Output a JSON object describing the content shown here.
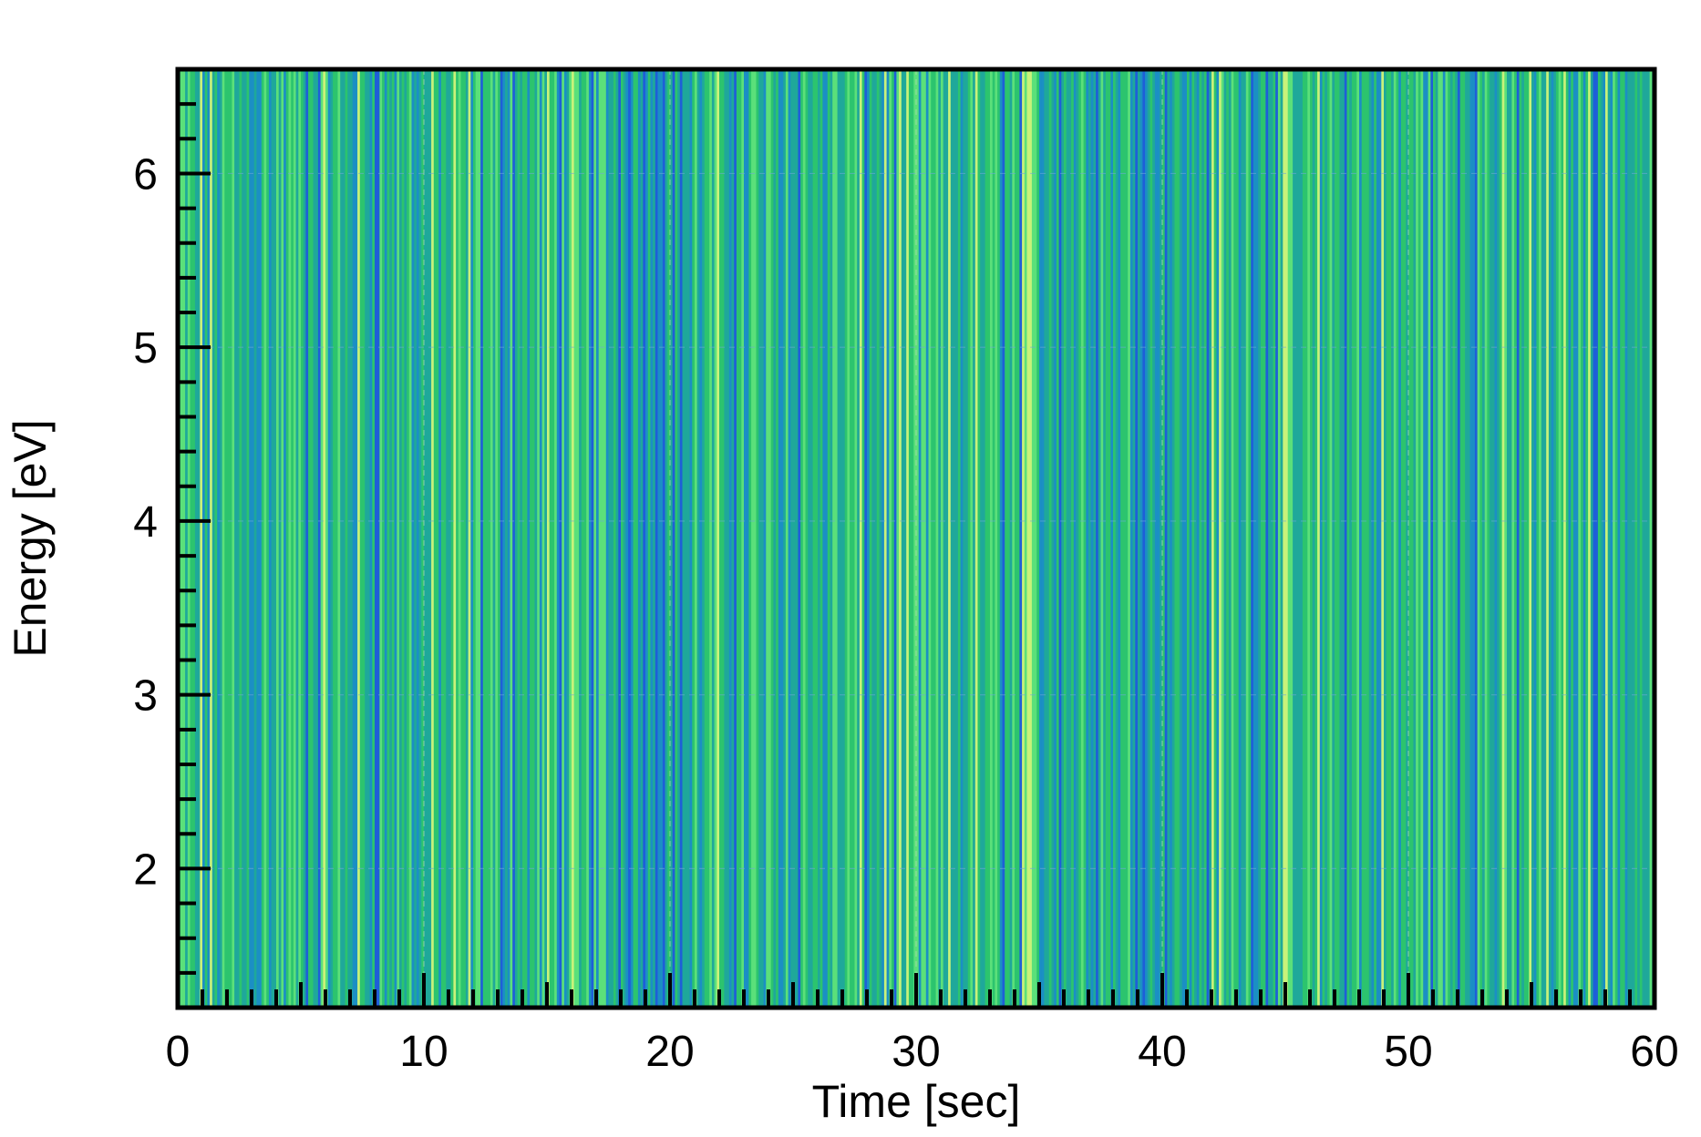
{
  "chart_data": {
    "type": "heatmap",
    "title": "",
    "xlabel": "Time [sec]",
    "ylabel": "Energy [eV]",
    "xlim": [
      0,
      60
    ],
    "ylim": [
      1.2,
      6.6
    ],
    "x_ticks": [
      0,
      10,
      20,
      30,
      40,
      50,
      60
    ],
    "x_tick_labels": [
      "0",
      "10",
      "20",
      "30",
      "40",
      "50",
      "60"
    ],
    "y_ticks": [
      2,
      3,
      4,
      5,
      6
    ],
    "y_tick_labels": [
      "2",
      "3",
      "4",
      "5",
      "6"
    ],
    "grid": true,
    "legend": "none",
    "colormap": [
      "#1e5fd8",
      "#1b8fc4",
      "#1fa89a",
      "#2cc46e",
      "#5be07a",
      "#c9f27a"
    ],
    "column_spacing_sec": 0.1,
    "structure": "vertical stripes: intensity varies with time, near-uniform across energy"
  }
}
